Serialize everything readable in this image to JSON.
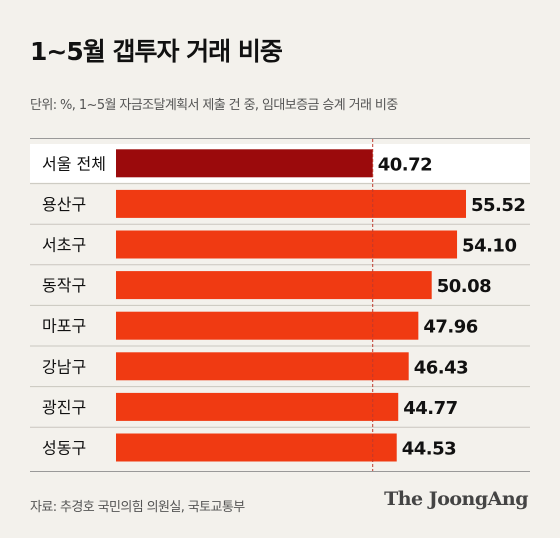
{
  "header": {
    "title": "1~5월 갭투자 거래 비중",
    "subtitle": "단위: %, 1~5월 자금조달계획서 제출 건 중, 임대보증금 승계 거래 비중"
  },
  "footer": {
    "source": "자료: 추경호 국민의힘 의원실, 국토교통부",
    "brand": "The JoongAng"
  },
  "colors": {
    "highlight": "#9b0a0c",
    "bar": "#f03a12",
    "reference": "#c0392b",
    "background": "#f3f1ec"
  },
  "chart_data": {
    "type": "bar",
    "orientation": "horizontal",
    "title": "1~5월 갭투자 거래 비중",
    "unit": "%",
    "categories": [
      "서울 전체",
      "용산구",
      "서초구",
      "동작구",
      "마포구",
      "강남구",
      "광진구",
      "성동구"
    ],
    "values": [
      40.72,
      55.52,
      54.1,
      50.08,
      47.96,
      46.43,
      44.77,
      44.53
    ],
    "value_labels": [
      "40.72",
      "55.52",
      "54.10",
      "50.08",
      "47.96",
      "46.43",
      "44.77",
      "44.53"
    ],
    "highlight_category": "서울 전체",
    "reference_line": 40.72,
    "xlim": [
      0,
      55.52
    ],
    "grid": false,
    "legend": "none"
  }
}
